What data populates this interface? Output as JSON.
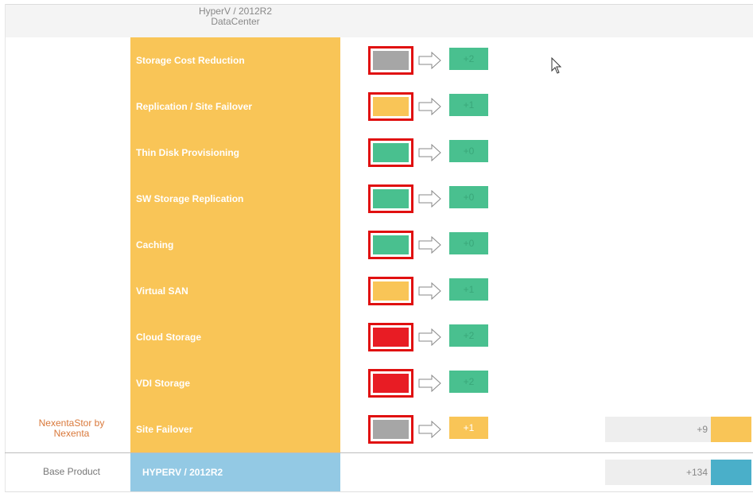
{
  "header": {
    "title_line1": "HyperV / 2012R2",
    "title_line2": "DataCenter"
  },
  "features": [
    {
      "label": "Storage Cost Reduction",
      "status_color": "#a6a6a6",
      "value": "+2",
      "value_color": "#49c08f"
    },
    {
      "label": "Replication / Site Failover",
      "status_color": "#f9c557",
      "value": "+1",
      "value_color": "#49c08f"
    },
    {
      "label": "Thin Disk Provisioning",
      "status_color": "#49c08f",
      "value": "+0",
      "value_color": "#49c08f"
    },
    {
      "label": "SW Storage Replication",
      "status_color": "#49c08f",
      "value": "+0",
      "value_color": "#49c08f"
    },
    {
      "label": "Caching",
      "status_color": "#49c08f",
      "value": "+0",
      "value_color": "#49c08f"
    },
    {
      "label": "Virtual SAN",
      "status_color": "#f9c557",
      "value": "+1",
      "value_color": "#49c08f"
    },
    {
      "label": "Cloud Storage",
      "status_color": "#e81c24",
      "value": "+2",
      "value_color": "#49c08f"
    },
    {
      "label": "VDI Storage",
      "status_color": "#e81c24",
      "value": "+2",
      "value_color": "#49c08f"
    },
    {
      "label": "Site Failover",
      "status_color": "#a6a6a6",
      "value": "+1",
      "value_color": "#f9c557"
    }
  ],
  "addon": {
    "name_line1": "NexentaStor by",
    "name_line2": "Nexenta",
    "name_color": "#d9783a",
    "total": "+9",
    "accent_color": "#f9c557"
  },
  "base": {
    "row_label": "Base Product",
    "product": "HYPERV / 2012R2",
    "total": "+134",
    "accent_color": "#4aafc9"
  },
  "colors": {
    "feature_column": "#f9c557",
    "frame": "#e01010",
    "base_column": "#93c9e4"
  }
}
